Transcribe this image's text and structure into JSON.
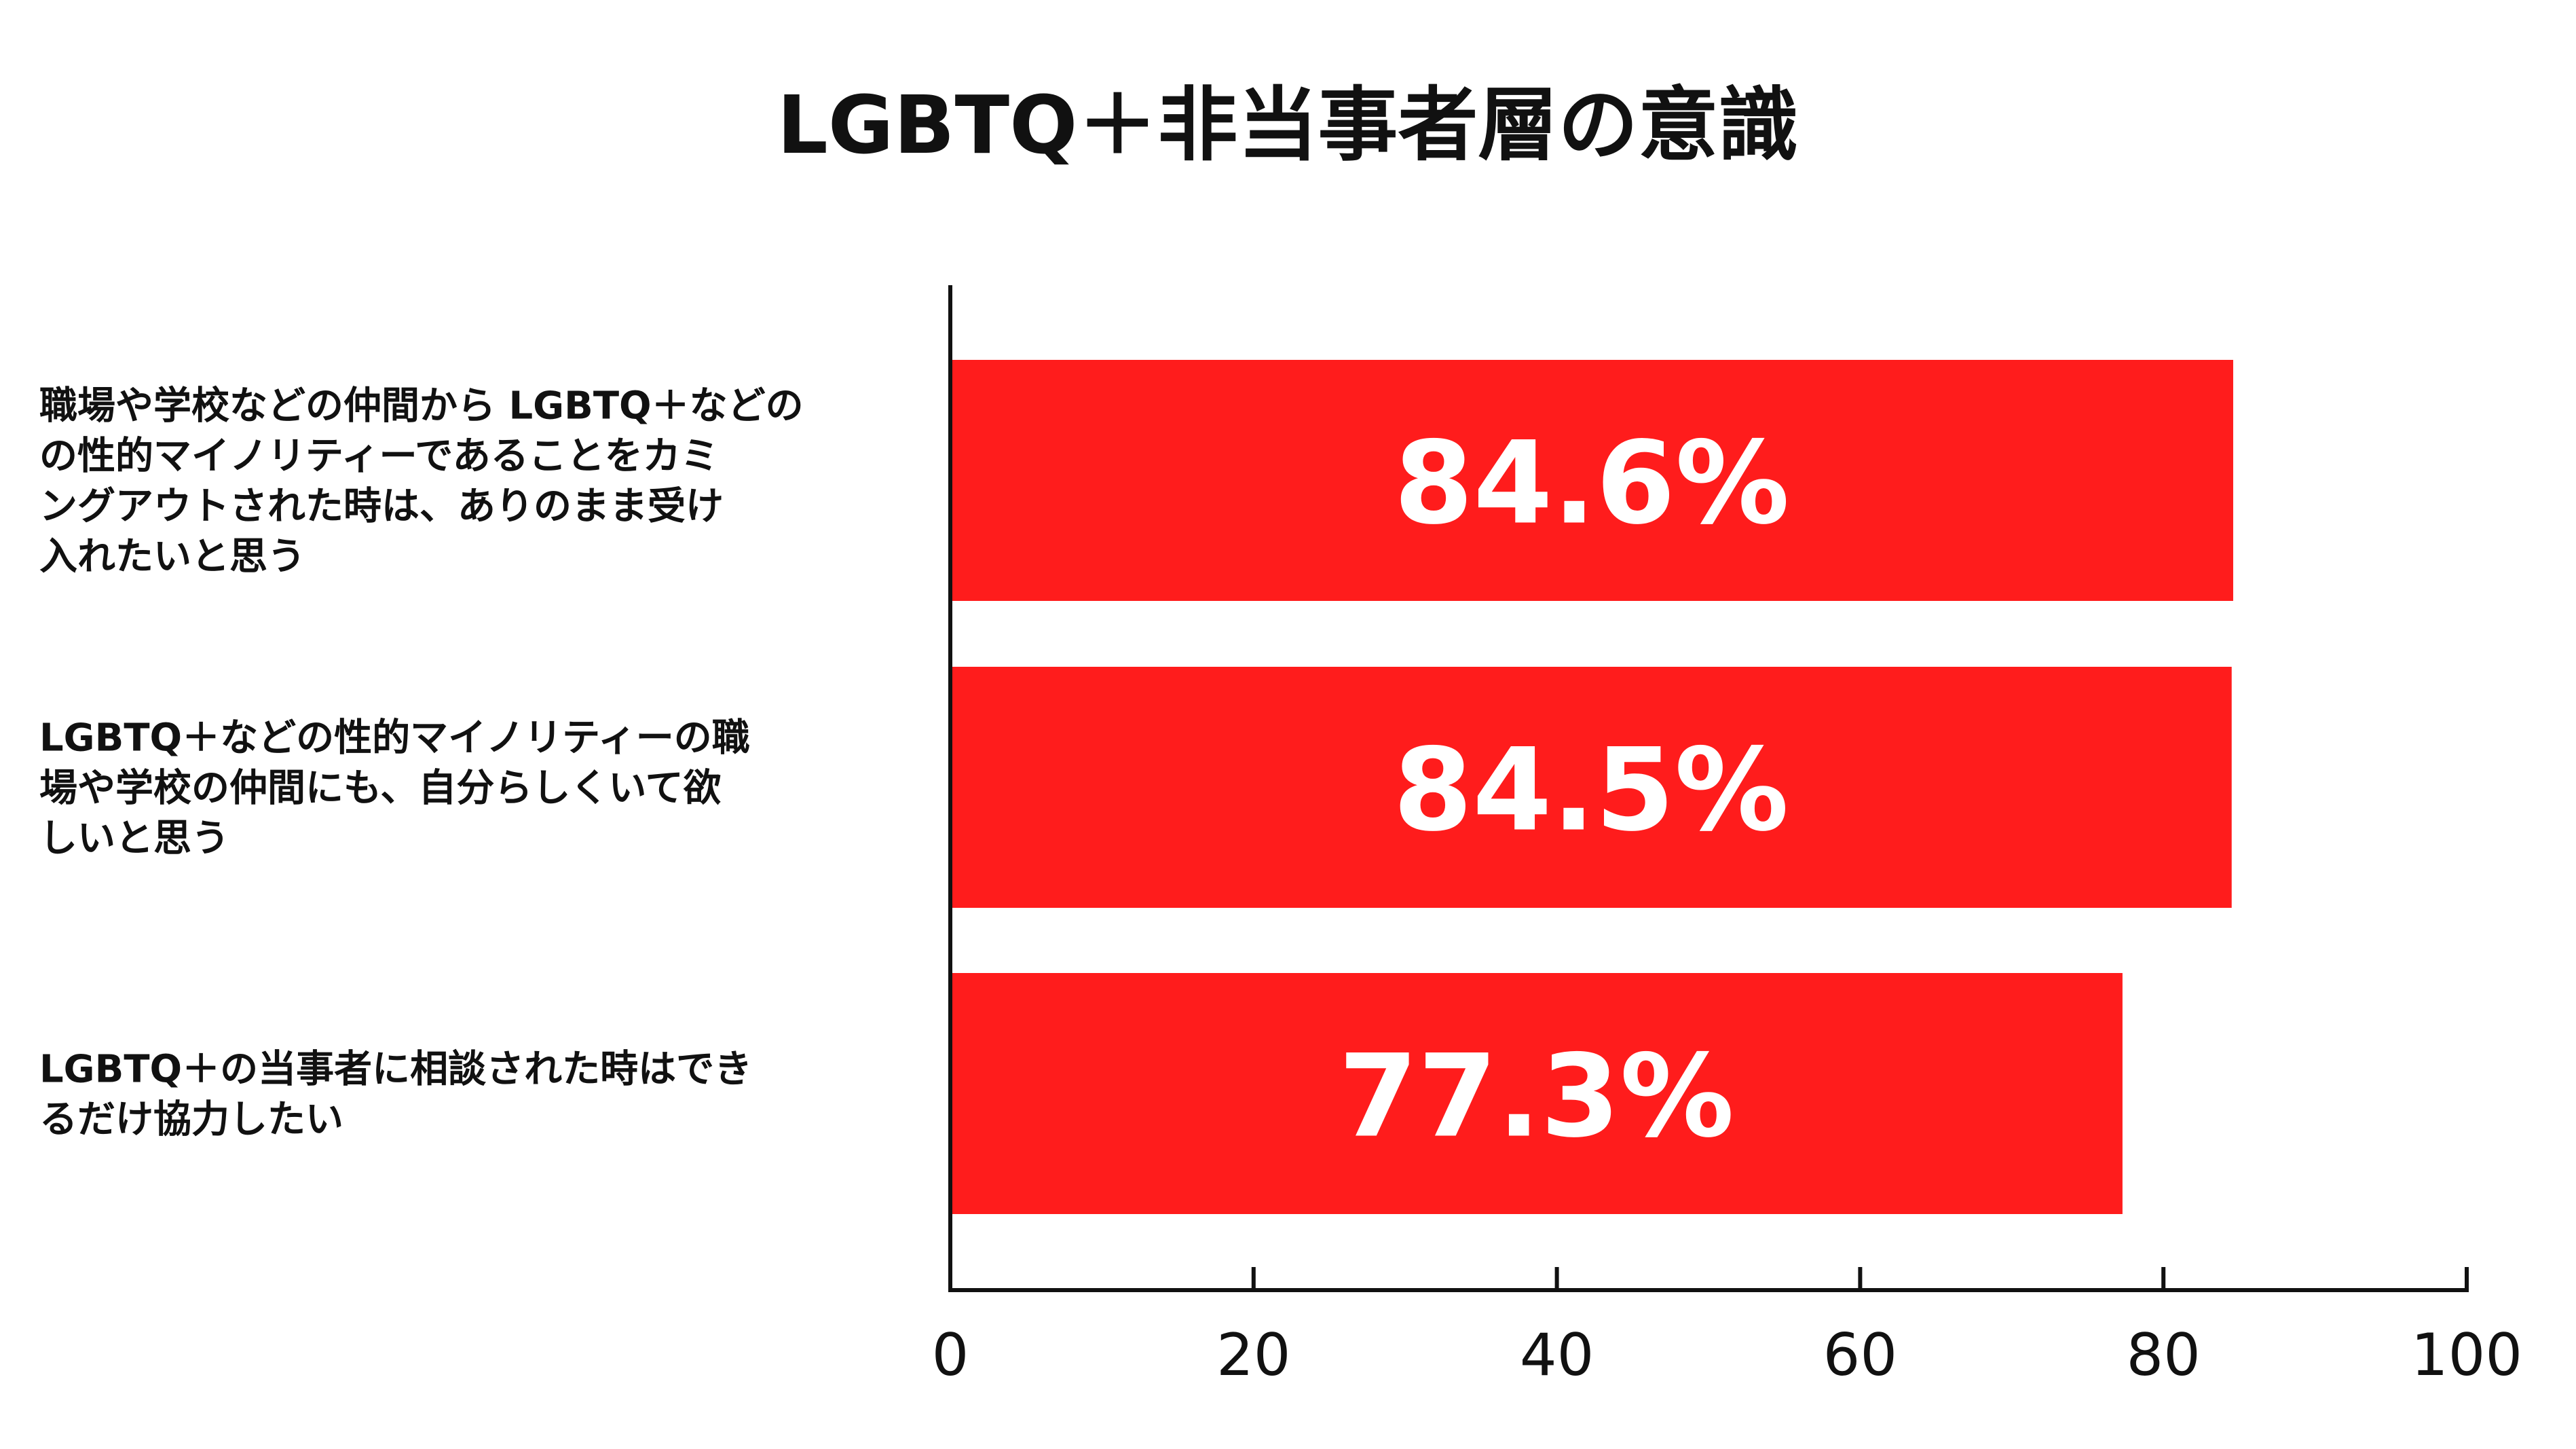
{
  "chart_data": {
    "type": "bar",
    "orientation": "horizontal",
    "title": "LGBTQ＋非当事者層の意識",
    "categories": [
      "職場や学校などの仲間から LGBTQ＋などの性的マイノリティーであることをカミングアウトされた時は、ありのまま受け入れたいと思う",
      "LGBTQ＋などの性的マイノリティーの職場や学校の仲間にも、自分らしくいて欲しいと思う",
      "LGBTQ＋の当事者に相談された時はできるだけ協力したい"
    ],
    "category_lines": [
      [
        "職場や学校などの仲間から LGBTQ＋などの",
        "の性的マイノリティーであることをカミ",
        "ングアウトされた時は、ありのまま受け",
        "入れたいと思う"
      ],
      [
        "LGBTQ＋などの性的マイノリティーの職",
        "場や学校の仲間にも、自分らしくいて欲",
        "しいと思う"
      ],
      [
        "LGBTQ＋の当事者に相談された時はでき",
        "るだけ協力したい"
      ]
    ],
    "values": [
      84.6,
      84.5,
      77.3
    ],
    "data_labels": [
      "84.6%",
      "84.5%",
      "77.3%"
    ],
    "xlim": [
      0,
      100
    ],
    "xticks": [
      0,
      20,
      40,
      60,
      80,
      100
    ],
    "xtick_labels": [
      "0",
      "20",
      "40",
      "60",
      "80",
      "100"
    ],
    "xlabel": "",
    "ylabel": "",
    "grid": false,
    "legend": "none",
    "bar_color": "#FF1C1C",
    "label_color": "#FFFFFF",
    "axis_color": "#111111"
  }
}
